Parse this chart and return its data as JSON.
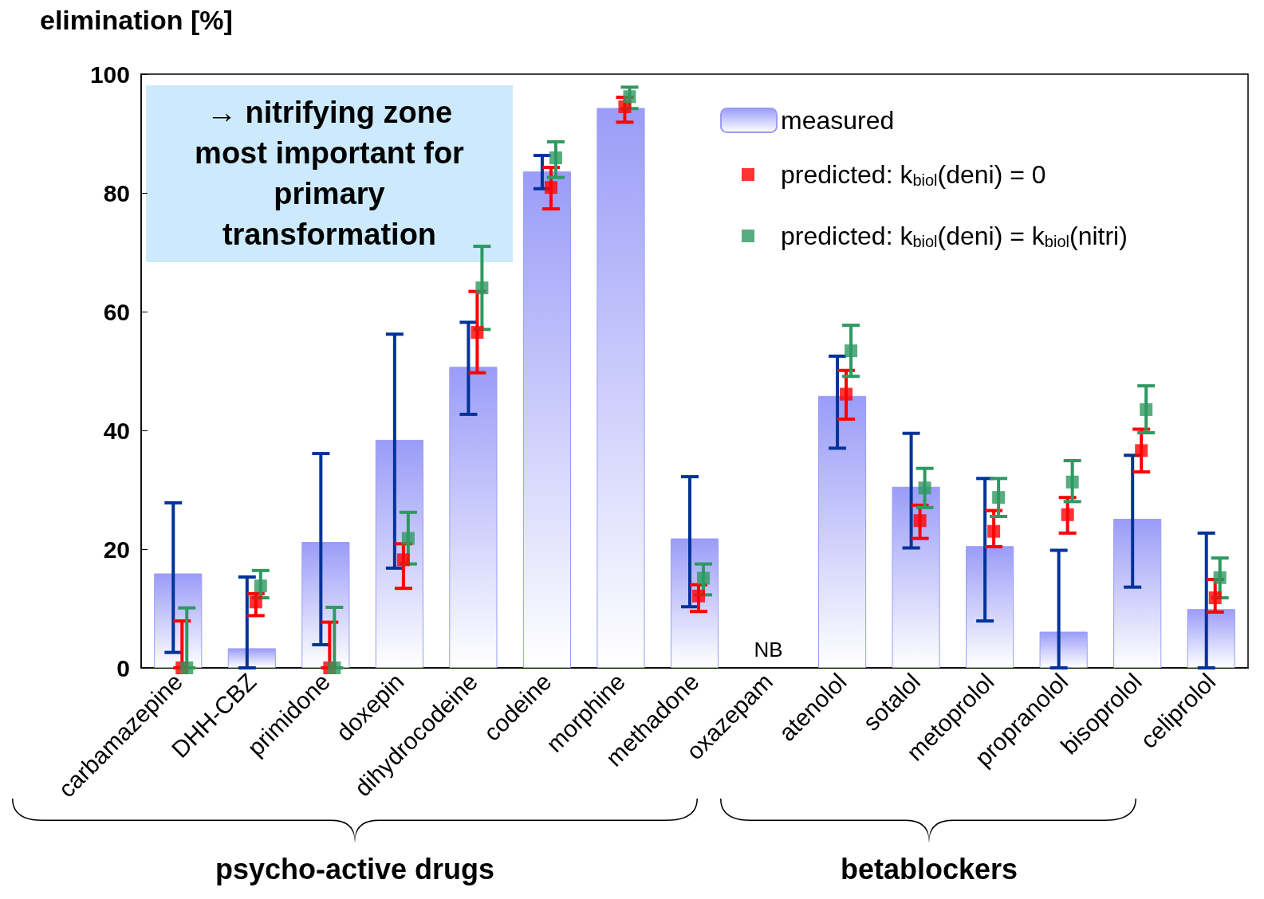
{
  "chart_data": {
    "type": "bar",
    "ylabel": "elimination [%]",
    "categories": [
      "carbamazepine",
      "DHH-CBZ",
      "primidone",
      "doxepin",
      "dihydrocodeine",
      "codeine",
      "morphine",
      "methadone",
      "oxazepam",
      "atenolol",
      "sotalol",
      "metoprolol",
      "propranolol",
      "bisoprolol",
      "celiprolol"
    ],
    "series": [
      {
        "name": "measured",
        "color": "#9a9cf8",
        "values": [
          15.9,
          3.3,
          21.2,
          38.4,
          50.7,
          83.6,
          94.3,
          21.8,
          null,
          45.8,
          30.5,
          20.5,
          6.1,
          25.1,
          9.9
        ],
        "errors": [
          [
            2.6,
            27.8
          ],
          [
            0,
            15.3
          ],
          [
            3.9,
            36.1
          ],
          [
            16.8,
            56.2
          ],
          [
            42.7,
            58.2
          ],
          [
            80.7,
            86.3
          ],
          null,
          [
            10.3,
            32.2
          ],
          null,
          [
            37.0,
            52.5
          ],
          [
            20.2,
            39.5
          ],
          [
            7.9,
            31.9
          ],
          [
            0,
            19.8
          ],
          [
            13.6,
            35.8
          ],
          [
            0,
            22.7
          ]
        ]
      },
      {
        "name": "predicted: k$_{biol}$(deni) = 0",
        "type": "scatter",
        "color": "#ff0000",
        "values": [
          0,
          11.1,
          0,
          18.2,
          56.5,
          80.9,
          94.5,
          12.1,
          null,
          46.1,
          24.8,
          23.0,
          25.8,
          36.6,
          11.8
        ],
        "errors": [
          [
            0,
            7.9
          ],
          [
            8.8,
            12.5
          ],
          [
            0,
            7.7
          ],
          [
            13.4,
            20.9
          ],
          [
            49.7,
            63.4
          ],
          [
            77.3,
            84.3
          ],
          [
            91.9,
            96.1
          ],
          [
            9.5,
            14.0
          ],
          null,
          [
            41.9,
            50.1
          ],
          [
            21.8,
            27.4
          ],
          [
            20.4,
            26.5
          ],
          [
            22.7,
            28.7
          ],
          [
            33.0,
            40.2
          ],
          [
            9.4,
            14.9
          ]
        ]
      },
      {
        "name": "predicted: k$_{biol}$(deni) = k$_{biol}$(nitri)",
        "type": "scatter",
        "color": "#2e9960",
        "values": [
          0,
          13.8,
          0,
          21.8,
          64.0,
          85.9,
          96.2,
          15.1,
          null,
          53.4,
          30.3,
          28.7,
          31.3,
          43.5,
          15.2
        ],
        "errors": [
          [
            0,
            10.1
          ],
          [
            11.8,
            16.4
          ],
          [
            0,
            10.2
          ],
          [
            17.5,
            26.2
          ],
          [
            57.0,
            71.0
          ],
          [
            82.6,
            88.6
          ],
          [
            94.2,
            97.8
          ],
          [
            12.3,
            17.5
          ],
          null,
          [
            49.1,
            57.7
          ],
          [
            27.0,
            33.6
          ],
          [
            25.5,
            31.9
          ],
          [
            28.0,
            34.9
          ],
          [
            39.6,
            47.5
          ],
          [
            11.8,
            18.5
          ]
        ]
      }
    ],
    "marker": "square",
    "ylim": [
      0,
      100
    ],
    "yticks": [
      0,
      20,
      40,
      60,
      80,
      100
    ],
    "grid": false,
    "legend": "top right",
    "annotations": [
      "→ nitrifying zone most important for primary transformation",
      "NB",
      "psycho-active drugs",
      "betablockers"
    ]
  }
}
